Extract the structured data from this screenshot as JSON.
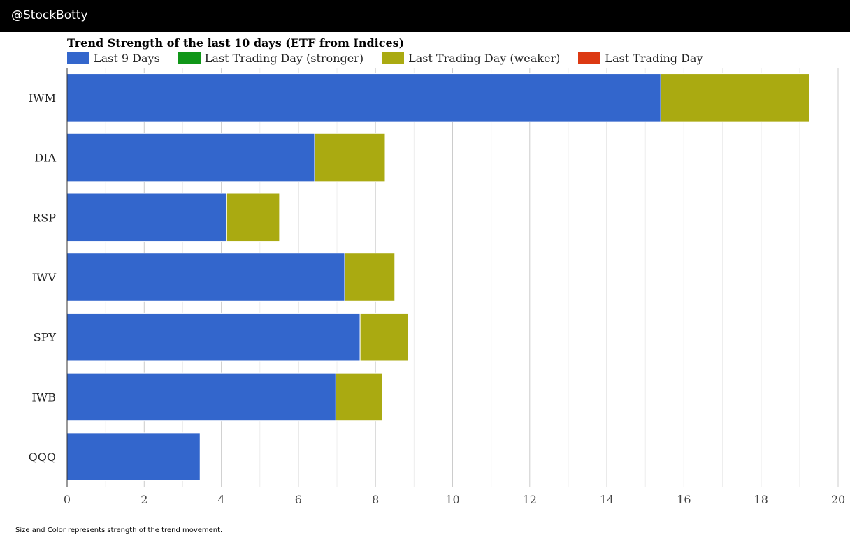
{
  "header": {
    "brand": "@StockBotty",
    "background": "#000000"
  },
  "footnote": "Size and Color represents strength of the trend movement.",
  "legend": [
    {
      "label": "Last 9 Days",
      "color": "#3366cc"
    },
    {
      "label": "Last Trading Day (stronger)",
      "color": "#109618"
    },
    {
      "label": "Last Trading Day (weaker)",
      "color": "#aaaa11"
    },
    {
      "label": "Last Trading Day",
      "color": "#dc3912"
    }
  ],
  "chart_data": {
    "type": "bar",
    "orientation": "horizontal",
    "stacked": true,
    "title": "Trend Strength of the last 10 days (ETF from Indices)",
    "categories": [
      "IWM",
      "DIA",
      "RSP",
      "IWV",
      "SPY",
      "IWB",
      "QQQ"
    ],
    "series": [
      {
        "name": "Last 9 Days",
        "color": "#3366cc",
        "values": [
          15.4,
          6.42,
          4.14,
          7.2,
          7.6,
          6.97,
          3.45
        ]
      },
      {
        "name": "Last Trading Day (stronger)",
        "color": "#109618",
        "values": [
          0,
          0,
          0,
          0,
          0,
          0,
          0
        ]
      },
      {
        "name": "Last Trading Day (weaker)",
        "color": "#aaaa11",
        "values": [
          3.85,
          1.83,
          1.37,
          1.3,
          1.25,
          1.2,
          0
        ]
      },
      {
        "name": "Last Trading Day",
        "color": "#dc3912",
        "values": [
          0,
          0,
          0,
          0,
          0,
          0,
          0
        ]
      }
    ],
    "xlim": [
      0,
      20
    ],
    "xticks": [
      0,
      2,
      4,
      6,
      8,
      10,
      12,
      14,
      16,
      18,
      20
    ],
    "grid": true,
    "xlabel": "",
    "ylabel": "",
    "legend_position": "top-left"
  }
}
